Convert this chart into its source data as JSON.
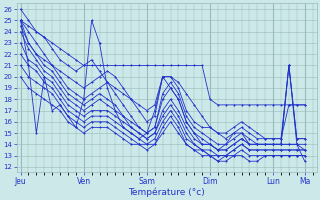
{
  "xlabel": "Température (°c)",
  "ylim": [
    11.5,
    26.5
  ],
  "yticks": [
    12,
    13,
    14,
    15,
    16,
    17,
    18,
    19,
    20,
    21,
    22,
    23,
    24,
    25,
    26
  ],
  "day_labels": [
    "Jeu",
    "Ven",
    "Sam",
    "Dim",
    "Lun",
    "Ma"
  ],
  "day_positions": [
    0,
    8,
    16,
    24,
    32,
    36
  ],
  "xlim": [
    -0.5,
    37.5
  ],
  "line_color": "#2233CC",
  "bg_color": "#cce8e8",
  "grid_color": "#99bbbb",
  "series": [
    [
      26.0,
      25.0,
      24.0,
      23.5,
      23.0,
      22.5,
      22.0,
      21.5,
      21.0,
      21.0,
      21.0,
      21.0,
      21.0,
      21.0,
      21.0,
      21.0,
      21.0,
      21.0,
      21.0,
      21.0,
      21.0,
      21.0,
      21.0,
      21.0,
      18.0,
      17.5,
      17.5,
      17.5,
      17.5,
      17.5,
      17.5,
      17.5,
      17.5,
      17.5,
      17.5,
      17.5,
      17.5
    ],
    [
      25.0,
      24.5,
      24.0,
      23.5,
      22.5,
      21.5,
      21.0,
      20.5,
      21.0,
      21.5,
      20.5,
      19.5,
      19.0,
      18.5,
      18.0,
      17.5,
      17.0,
      17.5,
      20.0,
      20.0,
      19.5,
      18.5,
      17.5,
      16.5,
      15.5,
      15.0,
      15.0,
      15.5,
      16.0,
      15.5,
      15.0,
      14.5,
      14.5,
      14.5,
      17.5,
      17.5,
      17.5
    ],
    [
      25.0,
      24.0,
      23.0,
      22.0,
      21.0,
      20.5,
      20.0,
      19.5,
      19.0,
      19.5,
      20.0,
      20.5,
      20.0,
      19.0,
      18.0,
      17.0,
      16.0,
      16.5,
      20.0,
      20.0,
      19.0,
      17.0,
      16.0,
      15.5,
      15.5,
      15.0,
      14.5,
      15.0,
      15.5,
      15.0,
      14.5,
      14.5,
      14.5,
      14.5,
      21.0,
      14.5,
      14.5
    ],
    [
      25.0,
      23.0,
      22.0,
      21.5,
      21.0,
      20.0,
      19.0,
      18.5,
      18.0,
      18.5,
      19.0,
      19.5,
      18.5,
      17.5,
      16.5,
      15.5,
      15.0,
      15.5,
      18.5,
      19.5,
      18.5,
      16.5,
      15.5,
      15.0,
      14.5,
      14.0,
      14.0,
      14.5,
      15.0,
      14.5,
      14.0,
      14.0,
      14.0,
      14.0,
      21.0,
      14.0,
      13.5
    ],
    [
      24.5,
      23.0,
      22.0,
      21.0,
      20.5,
      19.5,
      18.5,
      18.0,
      17.5,
      18.0,
      18.5,
      18.0,
      17.5,
      16.5,
      16.0,
      15.5,
      15.0,
      15.5,
      18.0,
      19.0,
      18.0,
      16.0,
      15.0,
      14.5,
      14.0,
      13.5,
      13.5,
      14.0,
      14.5,
      14.0,
      14.0,
      14.0,
      14.0,
      14.0,
      14.0,
      14.0,
      12.5
    ],
    [
      24.0,
      22.5,
      21.5,
      20.5,
      20.0,
      19.0,
      18.0,
      17.5,
      17.0,
      17.5,
      18.0,
      17.5,
      17.0,
      16.5,
      15.5,
      15.0,
      14.5,
      15.0,
      17.0,
      18.0,
      17.0,
      15.5,
      14.5,
      14.0,
      14.0,
      13.5,
      13.5,
      14.0,
      14.5,
      14.0,
      14.0,
      14.0,
      14.0,
      14.0,
      14.0,
      14.0,
      14.0
    ],
    [
      23.0,
      21.5,
      21.0,
      20.0,
      19.5,
      18.5,
      17.5,
      17.0,
      16.5,
      17.0,
      17.0,
      17.0,
      16.5,
      16.0,
      15.5,
      15.0,
      14.5,
      15.0,
      16.5,
      17.5,
      16.5,
      15.0,
      14.0,
      13.5,
      13.5,
      13.0,
      13.0,
      13.5,
      14.0,
      13.5,
      13.5,
      13.5,
      13.5,
      13.5,
      13.5,
      13.5,
      13.5
    ],
    [
      22.0,
      21.0,
      20.5,
      19.5,
      19.0,
      18.0,
      17.0,
      16.5,
      16.0,
      16.5,
      16.5,
      16.5,
      16.0,
      15.5,
      15.0,
      14.5,
      14.0,
      14.5,
      16.0,
      17.0,
      16.0,
      14.5,
      14.0,
      13.5,
      13.0,
      13.0,
      13.0,
      13.5,
      14.0,
      13.5,
      13.5,
      13.5,
      13.5,
      13.5,
      13.5,
      13.5,
      13.5
    ],
    [
      21.0,
      20.0,
      19.5,
      19.0,
      18.5,
      17.5,
      16.5,
      16.0,
      15.5,
      16.0,
      16.0,
      16.0,
      15.5,
      15.0,
      14.5,
      14.0,
      14.0,
      14.0,
      15.5,
      16.5,
      15.5,
      14.0,
      13.5,
      13.5,
      13.0,
      12.5,
      13.0,
      13.0,
      13.5,
      13.0,
      13.0,
      13.0,
      13.0,
      13.0,
      13.0,
      13.0,
      13.0
    ],
    [
      20.0,
      19.0,
      18.5,
      18.0,
      17.5,
      17.0,
      16.0,
      15.5,
      15.0,
      15.5,
      15.5,
      15.5,
      15.0,
      14.5,
      14.0,
      14.0,
      13.5,
      14.0,
      15.0,
      16.0,
      15.0,
      14.0,
      13.5,
      13.0,
      13.0,
      12.5,
      12.5,
      13.0,
      13.0,
      12.5,
      12.5,
      13.0,
      13.0,
      13.0,
      13.0,
      13.0,
      13.0
    ],
    [
      25.0,
      21.0,
      15.0,
      20.0,
      17.0,
      17.5,
      16.5,
      15.5,
      18.0,
      25.0,
      23.0,
      19.0,
      17.0,
      15.5,
      15.0,
      14.5,
      15.0,
      17.0,
      20.0,
      19.0,
      18.0,
      16.0,
      15.0,
      14.0,
      14.0,
      13.5,
      14.0,
      15.0,
      15.0,
      14.0,
      14.0,
      14.0,
      14.0,
      14.0,
      21.0,
      14.5,
      14.5
    ]
  ]
}
